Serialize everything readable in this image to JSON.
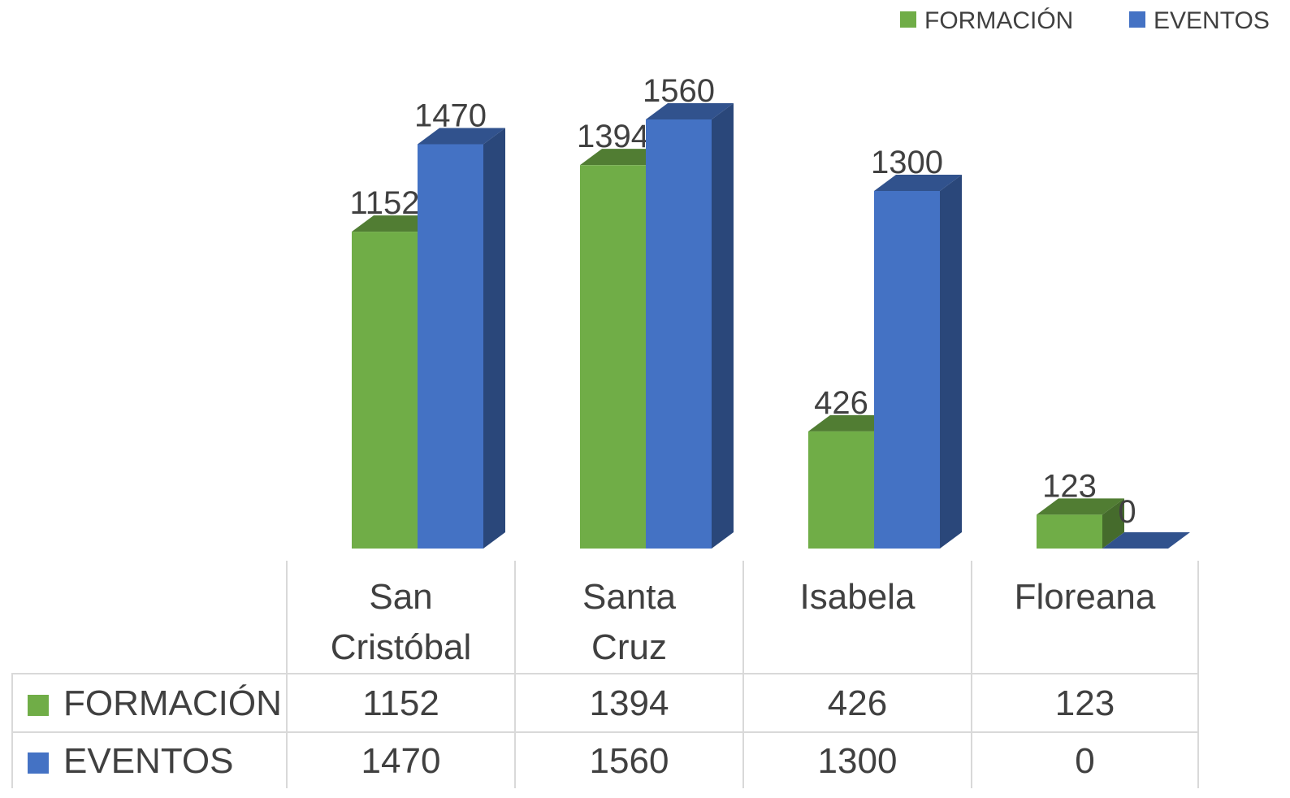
{
  "chart_data": {
    "type": "bar3d",
    "categories": [
      "San Cristóbal",
      "Santa Cruz",
      "Isabela",
      "Floreana"
    ],
    "series": [
      {
        "name": "FORMACIÓN",
        "color": "#70ad47",
        "values": [
          1152,
          1394,
          426,
          123
        ]
      },
      {
        "name": "EVENTOS",
        "color": "#4472c4",
        "values": [
          1470,
          1560,
          1300,
          0
        ]
      }
    ],
    "legend": "top-right",
    "data_table": true
  }
}
